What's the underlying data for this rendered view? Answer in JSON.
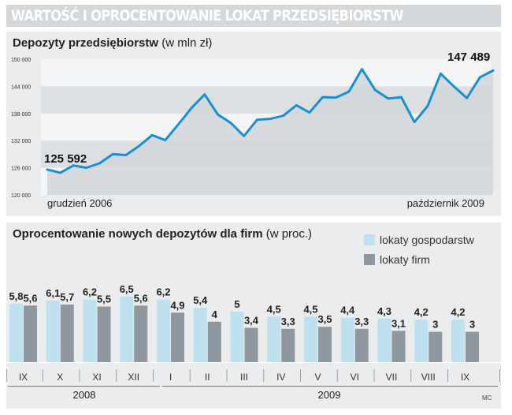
{
  "title": "WARTOŚĆ I OPROCENTOWANIE LOKAT PRZEDSIĘBIORSTW",
  "credit": "MC",
  "line_panel": {
    "title_bold": "Depozyty przedsiębiorstw",
    "title_unit": " (w mln zł)",
    "start_label": "grudzień 2006",
    "end_label": "październik 2009",
    "first_value_label": "125 592",
    "last_value_label": "147 489"
  },
  "bar_panel": {
    "title_bold": "Oprocentowanie nowych depozytów dla firm",
    "title_unit": " (w proc.)",
    "legend": [
      {
        "label": "lokaty gospodarstw",
        "color": "#bfe0ee"
      },
      {
        "label": "lokaty firm",
        "color": "#8e989e"
      }
    ],
    "year_labels": [
      "2008",
      "2009"
    ]
  },
  "colors": {
    "line": "#1b8fd0",
    "area": "#d1d6da",
    "band": "#dde0e3",
    "bar_household": "#bfe0ee",
    "bar_firm": "#8e989e"
  },
  "chart_data": [
    {
      "type": "area",
      "title": "Depozyty przedsiębiorstw (w mln zł)",
      "ylim": [
        120000,
        150000
      ],
      "y_ticks": [
        120000,
        126000,
        132000,
        138000,
        144000,
        150000
      ],
      "y_tick_labels": [
        "120 000",
        "126 000",
        "132 000",
        "138 000",
        "144 000",
        "150 000"
      ],
      "x_start": "grudzień 2006",
      "x_end": "październik 2009",
      "values": [
        125592,
        124900,
        126500,
        126000,
        127000,
        129000,
        128800,
        130800,
        133200,
        132100,
        135600,
        139200,
        142200,
        137800,
        135900,
        133000,
        136600,
        136800,
        137500,
        139800,
        138200,
        141600,
        141500,
        142800,
        147800,
        143200,
        141300,
        141600,
        136100,
        139600,
        146800,
        144000,
        141400,
        146000,
        147489
      ]
    },
    {
      "type": "bar",
      "title": "Oprocentowanie nowych depozytów dla firm (w proc.)",
      "categories": [
        "IX",
        "X",
        "XI",
        "XII",
        "I",
        "II",
        "III",
        "IV",
        "V",
        "VI",
        "VII",
        "VIII",
        "IX"
      ],
      "years": [
        {
          "label": "2008",
          "months": [
            "IX",
            "X",
            "XI",
            "XII"
          ]
        },
        {
          "label": "2009",
          "months": [
            "I",
            "II",
            "III",
            "IV",
            "V",
            "VI",
            "VII",
            "VIII",
            "IX"
          ]
        }
      ],
      "series": [
        {
          "name": "lokaty gospodarstw",
          "values": [
            5.8,
            6.1,
            6.2,
            6.5,
            6.2,
            5.4,
            5,
            4.5,
            4.5,
            4.4,
            4.3,
            4.2,
            4.2
          ],
          "labels": [
            "5,8",
            "6,1",
            "6,2",
            "6,5",
            "6,2",
            "5,4",
            "5",
            "4,5",
            "4,5",
            "4,4",
            "4,3",
            "4,2",
            "4,2"
          ]
        },
        {
          "name": "lokaty firm",
          "values": [
            5.6,
            5.7,
            5.5,
            5.6,
            4.9,
            4,
            3.4,
            3.3,
            3.5,
            3.3,
            3.1,
            3,
            3
          ],
          "labels": [
            "5,6",
            "5,7",
            "5,5",
            "5,6",
            "4,9",
            "4",
            "3,4",
            "3,3",
            "3,5",
            "3,3",
            "3,1",
            "3",
            "3"
          ]
        }
      ]
    }
  ]
}
